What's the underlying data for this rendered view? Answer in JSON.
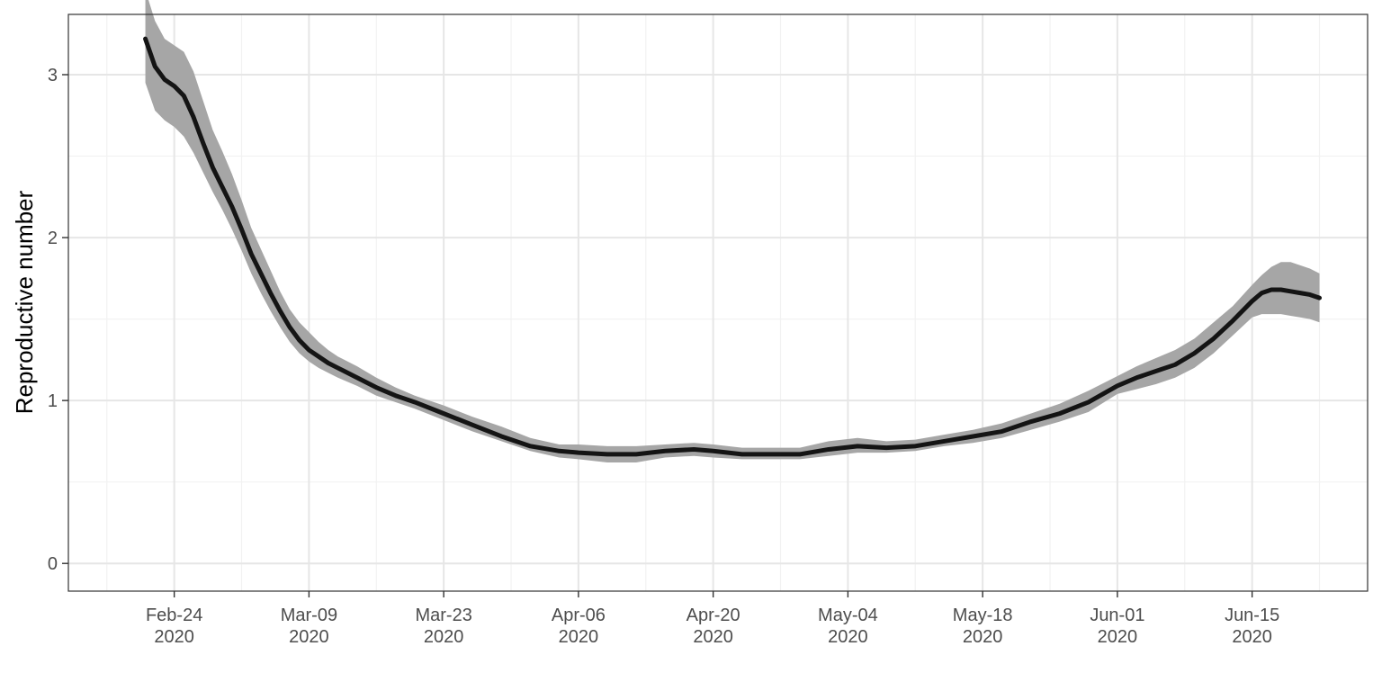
{
  "chart_data": {
    "type": "area",
    "title": "",
    "xlabel": "",
    "ylabel": "Reproductive number",
    "xlim": [
      "2020-02-13",
      "2020-06-27"
    ],
    "ylim": [
      -0.17,
      3.37
    ],
    "grid": true,
    "legend": "none",
    "colors": {
      "line": "#141414",
      "band": "#a6a6a6",
      "panel_border": "#333333",
      "grid_major": "#e6e6e6",
      "grid_minor": "#f2f2f2"
    },
    "x_ticks": [
      {
        "date": "2020-02-24",
        "line1": "Feb-24",
        "line2": "2020"
      },
      {
        "date": "2020-03-09",
        "line1": "Mar-09",
        "line2": "2020"
      },
      {
        "date": "2020-03-23",
        "line1": "Mar-23",
        "line2": "2020"
      },
      {
        "date": "2020-04-06",
        "line1": "Apr-06",
        "line2": "2020"
      },
      {
        "date": "2020-04-20",
        "line1": "Apr-20",
        "line2": "2020"
      },
      {
        "date": "2020-05-04",
        "line1": "May-04",
        "line2": "2020"
      },
      {
        "date": "2020-05-18",
        "line1": "May-18",
        "line2": "2020"
      },
      {
        "date": "2020-06-01",
        "line1": "Jun-01",
        "line2": "2020"
      },
      {
        "date": "2020-06-15",
        "line1": "Jun-15",
        "line2": "2020"
      }
    ],
    "y_ticks": [
      {
        "value": 0,
        "label": "0"
      },
      {
        "value": 1,
        "label": "1"
      },
      {
        "value": 2,
        "label": "2"
      },
      {
        "value": 3,
        "label": "3"
      }
    ],
    "series": [
      {
        "x": [
          "2020-02-21",
          "2020-02-22",
          "2020-02-23",
          "2020-02-24",
          "2020-02-25",
          "2020-02-26",
          "2020-02-27",
          "2020-02-28",
          "2020-02-29",
          "2020-03-01",
          "2020-03-02",
          "2020-03-03",
          "2020-03-04",
          "2020-03-05",
          "2020-03-06",
          "2020-03-07",
          "2020-03-08",
          "2020-03-09",
          "2020-03-10",
          "2020-03-11",
          "2020-03-12",
          "2020-03-14",
          "2020-03-16",
          "2020-03-18",
          "2020-03-20",
          "2020-03-23",
          "2020-03-26",
          "2020-03-29",
          "2020-04-01",
          "2020-04-04",
          "2020-04-06",
          "2020-04-09",
          "2020-04-12",
          "2020-04-15",
          "2020-04-18",
          "2020-04-20",
          "2020-04-23",
          "2020-04-26",
          "2020-04-29",
          "2020-05-02",
          "2020-05-05",
          "2020-05-08",
          "2020-05-11",
          "2020-05-14",
          "2020-05-17",
          "2020-05-20",
          "2020-05-23",
          "2020-05-26",
          "2020-05-29",
          "2020-06-01",
          "2020-06-03",
          "2020-06-05",
          "2020-06-07",
          "2020-06-09",
          "2020-06-11",
          "2020-06-13",
          "2020-06-15",
          "2020-06-16",
          "2020-06-17",
          "2020-06-18",
          "2020-06-19",
          "2020-06-20",
          "2020-06-21",
          "2020-06-22"
        ],
        "values": [
          3.22,
          3.05,
          2.97,
          2.93,
          2.87,
          2.74,
          2.58,
          2.43,
          2.31,
          2.19,
          2.05,
          1.9,
          1.78,
          1.66,
          1.55,
          1.45,
          1.37,
          1.31,
          1.27,
          1.23,
          1.2,
          1.14,
          1.08,
          1.03,
          0.99,
          0.92,
          0.85,
          0.78,
          0.72,
          0.69,
          0.68,
          0.67,
          0.67,
          0.69,
          0.7,
          0.69,
          0.67,
          0.67,
          0.67,
          0.7,
          0.72,
          0.71,
          0.72,
          0.75,
          0.78,
          0.81,
          0.87,
          0.92,
          0.99,
          1.09,
          1.14,
          1.18,
          1.22,
          1.29,
          1.38,
          1.49,
          1.61,
          1.66,
          1.68,
          1.68,
          1.67,
          1.66,
          1.65,
          1.63
        ],
        "lower": [
          2.95,
          2.78,
          2.72,
          2.68,
          2.62,
          2.52,
          2.4,
          2.28,
          2.17,
          2.05,
          1.92,
          1.78,
          1.66,
          1.55,
          1.45,
          1.36,
          1.29,
          1.24,
          1.2,
          1.17,
          1.14,
          1.09,
          1.03,
          0.99,
          0.95,
          0.88,
          0.81,
          0.75,
          0.69,
          0.65,
          0.64,
          0.62,
          0.62,
          0.65,
          0.66,
          0.65,
          0.64,
          0.64,
          0.64,
          0.66,
          0.68,
          0.68,
          0.69,
          0.72,
          0.74,
          0.77,
          0.82,
          0.87,
          0.93,
          1.04,
          1.07,
          1.1,
          1.14,
          1.2,
          1.29,
          1.4,
          1.51,
          1.53,
          1.53,
          1.53,
          1.52,
          1.51,
          1.5,
          1.48
        ],
        "upper": [
          3.52,
          3.33,
          3.22,
          3.18,
          3.14,
          3.02,
          2.84,
          2.66,
          2.53,
          2.39,
          2.23,
          2.06,
          1.93,
          1.8,
          1.67,
          1.56,
          1.48,
          1.42,
          1.36,
          1.31,
          1.27,
          1.21,
          1.14,
          1.08,
          1.03,
          0.97,
          0.9,
          0.84,
          0.77,
          0.73,
          0.73,
          0.72,
          0.72,
          0.73,
          0.74,
          0.73,
          0.71,
          0.71,
          0.71,
          0.75,
          0.77,
          0.75,
          0.76,
          0.79,
          0.82,
          0.86,
          0.92,
          0.98,
          1.06,
          1.15,
          1.21,
          1.26,
          1.31,
          1.38,
          1.48,
          1.58,
          1.71,
          1.77,
          1.82,
          1.85,
          1.85,
          1.83,
          1.81,
          1.78
        ]
      }
    ]
  }
}
